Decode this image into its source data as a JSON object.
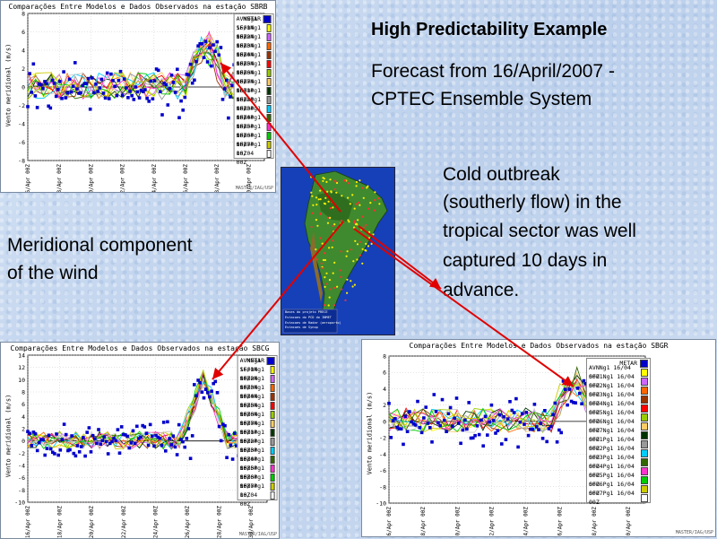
{
  "slide": {
    "title": "High Predictability Example",
    "subtitle_line1": "Forecast from 16/April/2007 -",
    "subtitle_line2": "CPTEC Ensemble System",
    "cold_line1": "Cold outbreak",
    "cold_line2": "(southerly flow) in the",
    "cold_line3": "tropical sector was well",
    "cold_line4": "captured 10 days in",
    "cold_line5": "advance.",
    "merid_line1": "Meridional component",
    "merid_line2": "of the wind"
  },
  "map": {
    "legend": [
      "Bases do projeto PRECE",
      "Estacoes do PCD do INMET",
      "Estacoes de Radar (aeroporto)",
      "Estacoes de Synop"
    ]
  },
  "legend_items": [
    {
      "label": "METAR",
      "color": "#0000cc"
    },
    {
      "label": "AVNNg1 16/04 00Z",
      "color": "#ffff00"
    },
    {
      "label": "SF01Ng1 16/04 00Z",
      "color": "#cc66ff"
    },
    {
      "label": "SF02Ng1 16/04 00Z",
      "color": "#ff6600"
    },
    {
      "label": "SF03Ng1 16/04 00Z",
      "color": "#993300"
    },
    {
      "label": "SF04Ng1 16/04 00Z",
      "color": "#ff0000"
    },
    {
      "label": "SF05Ng1 16/04 00Z",
      "color": "#99cc00"
    },
    {
      "label": "SF06Ng1 16/04 00Z",
      "color": "#ffcc66"
    },
    {
      "label": "SF07Ng1 16/04 00Z",
      "color": "#003300"
    },
    {
      "label": "SF01Pg1 16/04 00Z",
      "color": "#999999"
    },
    {
      "label": "SF02Pg1 16/04 00Z",
      "color": "#00ccff"
    },
    {
      "label": "SF03Pg1 16/04 00Z",
      "color": "#336600"
    },
    {
      "label": "SF04Pg1 16/04 00Z",
      "color": "#ff33cc"
    },
    {
      "label": "SF05Pg1 16/04 00Z",
      "color": "#00cc00"
    },
    {
      "label": "SF06Pg1 16/04 00Z",
      "color": "#cccc00"
    },
    {
      "label": "SF07Pg1 16/04 00Z",
      "color": "#ffffff"
    }
  ],
  "chart_data": [
    {
      "type": "scatter",
      "title": "Comparações Entre Modelos e Dados Observados na estação SBRB",
      "ylabel": "Vento meridional (m/s)",
      "ylim": [
        -8,
        8
      ],
      "yticks": [
        "8",
        "6",
        "4",
        "2",
        "0",
        "-2",
        "-4",
        "-6",
        "-8"
      ],
      "xticks": [
        "16/Apr 00Z",
        "18/Apr 00Z",
        "20/Apr 00Z",
        "22/Apr 00Z",
        "24/Apr 00Z",
        "26/Apr 00Z",
        "28/Apr 00Z",
        "30/Apr 00Z"
      ],
      "station": "SBRB",
      "peak_day": 27.3,
      "peak_value": 5,
      "credit": "MASTER/IAG/USP"
    },
    {
      "type": "scatter",
      "title": "Comparações Entre Modelos e Dados Observados na estação SBCG",
      "ylabel": "Vento meridional (m/s)",
      "ylim": [
        -10,
        14
      ],
      "yticks": [
        "14",
        "12",
        "10",
        "8",
        "6",
        "4",
        "2",
        "0",
        "-2",
        "-4",
        "-6",
        "-8",
        "-10"
      ],
      "xticks": [
        "16/Apr 00Z",
        "18/Apr 00Z",
        "20/Apr 00Z",
        "22/Apr 00Z",
        "24/Apr 00Z",
        "26/Apr 00Z",
        "28/Apr 00Z",
        "30/Apr 00Z"
      ],
      "station": "SBCG",
      "peak_day": 27.0,
      "peak_value": 10,
      "credit": "MASTER/IAG/USP"
    },
    {
      "type": "scatter",
      "title": "Comparações Entre Modelos e Dados Observados na estação SBGR",
      "ylabel": "Vento meridional (m/s)",
      "ylim": [
        -10,
        8
      ],
      "yticks": [
        "8",
        "6",
        "4",
        "2",
        "0",
        "-2",
        "-4",
        "-6",
        "-8",
        "-10"
      ],
      "xticks": [
        "16/Apr 00Z",
        "18/Apr 00Z",
        "20/Apr 00Z",
        "22/Apr 00Z",
        "24/Apr 00Z",
        "26/Apr 00Z",
        "28/Apr 00Z",
        "30/Apr 00Z"
      ],
      "station": "SBGR",
      "peak_day": 26.8,
      "peak_value": 5,
      "credit": "MASTER/IAG/USP"
    }
  ]
}
